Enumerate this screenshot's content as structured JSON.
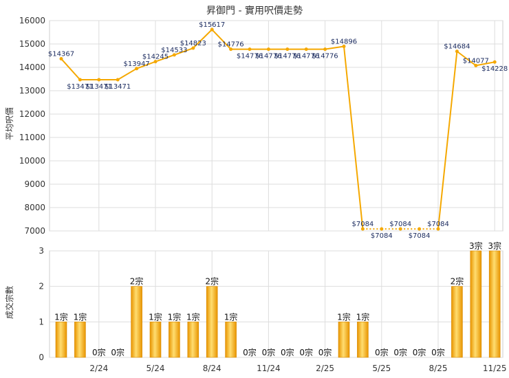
{
  "chart_data": [
    {
      "type": "line",
      "title": "昇御門 - 實用呎價走勢",
      "ylabel": "平均呎價",
      "ylim": [
        7000,
        16000
      ],
      "yticks": [
        7000,
        8000,
        9000,
        10000,
        11000,
        12000,
        13000,
        14000,
        15000,
        16000
      ],
      "grid": true,
      "color": "#f5a800",
      "x_ticks": [
        "2/24",
        "5/24",
        "8/24",
        "11/24",
        "2/25",
        "5/25",
        "8/25",
        "11/25"
      ],
      "series": [
        {
          "values": [
            14367,
            13471,
            13471,
            13471,
            13947,
            14245,
            14533,
            14823,
            15617,
            14776,
            14776,
            14776,
            14776,
            14776,
            14776,
            14896,
            7084,
            7084,
            7084,
            7084,
            7084,
            14684,
            14077,
            14228
          ],
          "labels": [
            "$14367",
            "$13471",
            "$13471",
            "$13471",
            "$13947",
            "$14245",
            "$14533",
            "$14823",
            "$15617",
            "$14776",
            "$14776",
            "$14776",
            "$14776",
            "$14776",
            "$14776",
            "$14896",
            "$7084",
            "$7084",
            "$7084",
            "$7084",
            "$7084",
            "$14684",
            "$14077",
            "$14228"
          ]
        }
      ]
    },
    {
      "type": "bar",
      "ylabel": "成交宗數",
      "ylim": [
        0,
        3
      ],
      "yticks": [
        0,
        1,
        2,
        3
      ],
      "grid": true,
      "color": "#f5a800",
      "x_ticks": [
        "2/24",
        "5/24",
        "8/24",
        "11/24",
        "2/25",
        "5/25",
        "8/25",
        "11/25"
      ],
      "values": [
        1,
        1,
        0,
        0,
        2,
        1,
        1,
        1,
        2,
        1,
        0,
        0,
        0,
        0,
        0,
        1,
        1,
        0,
        0,
        0,
        0,
        2,
        3,
        3
      ],
      "labels": [
        "1宗",
        "1宗",
        "0宗",
        "0宗",
        "2宗",
        "1宗",
        "1宗",
        "1宗",
        "2宗",
        "1宗",
        "0宗",
        "0宗",
        "0宗",
        "0宗",
        "0宗",
        "1宗",
        "1宗",
        "0宗",
        "0宗",
        "0宗",
        "0宗",
        "2宗",
        "3宗",
        "3宗"
      ]
    }
  ]
}
